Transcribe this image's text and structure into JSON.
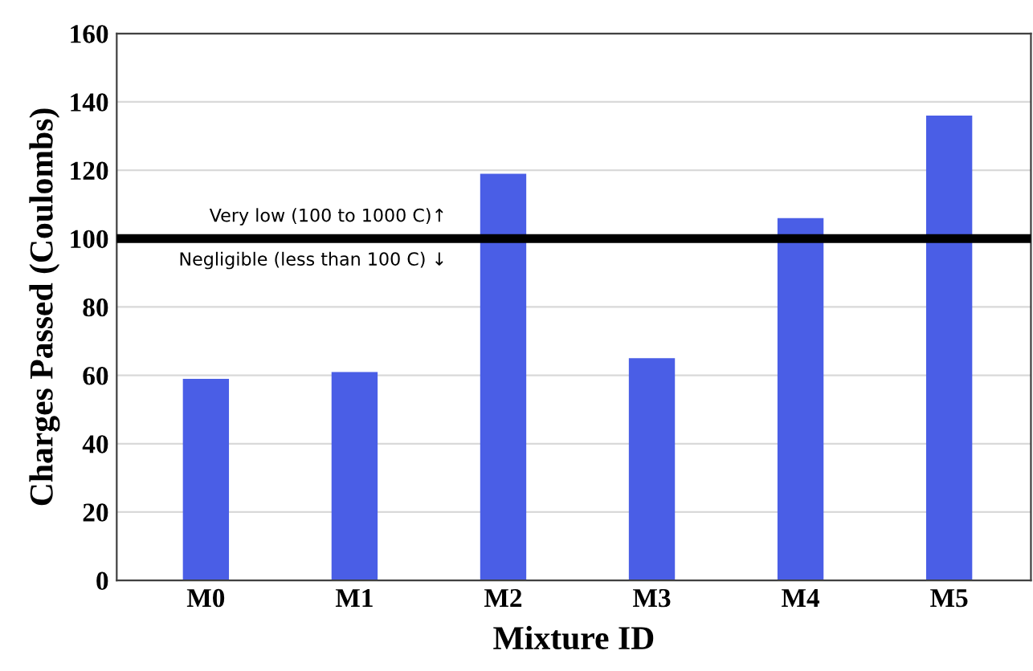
{
  "chart_data": {
    "type": "bar",
    "xlabel": "Mixture ID",
    "ylabel": "Charges Passed (Coulombs)",
    "categories": [
      "M0",
      "M1",
      "M2",
      "M3",
      "M4",
      "M5"
    ],
    "values": [
      59,
      61,
      119,
      65,
      106,
      136
    ],
    "color": "#4a5ee6",
    "ylim": [
      0,
      160
    ],
    "yticks": [
      0,
      20,
      40,
      60,
      80,
      100,
      120,
      140,
      160
    ],
    "grid": "y",
    "ref_lines": [
      {
        "axis": "y",
        "value": 100,
        "color": "#000000"
      }
    ],
    "annotations": [
      "Very low (100 to 1000 C)↑",
      "Negligible (less than 100 C) ↓"
    ]
  }
}
